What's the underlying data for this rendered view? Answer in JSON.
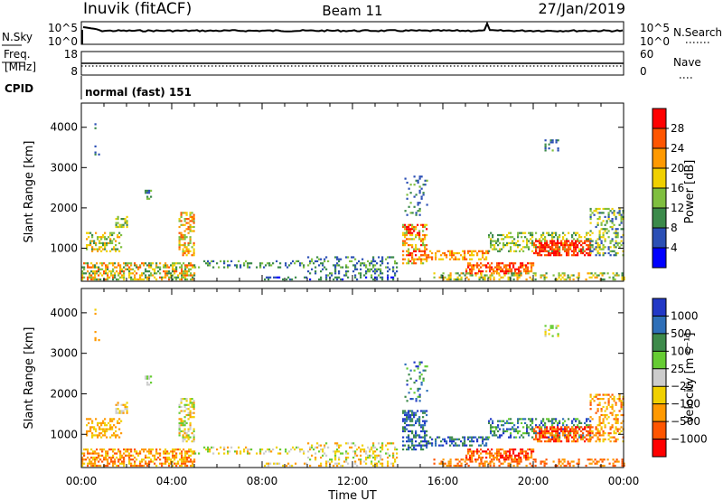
{
  "header": {
    "station": "Inuvik (fitACF)",
    "beam": "Beam 11",
    "date": "27/Jan/2019"
  },
  "noise_panel": {
    "left_label": "N.Sky",
    "right_label": "N.Search",
    "left_ticks": [
      "10^5",
      "10^0"
    ],
    "right_ticks": [
      "10^5",
      "10^0"
    ]
  },
  "freq_panel": {
    "left_label_top": "Freq.",
    "left_label_bottom": "[MHz]",
    "right_label": "Nave",
    "left_ticks": [
      "18",
      "8"
    ],
    "right_ticks": [
      "60",
      "0"
    ]
  },
  "cpid": {
    "label": "CPID",
    "value": "normal (fast) 151"
  },
  "x_axis": {
    "label": "Time UT",
    "ticks": [
      "00:00",
      "04:00",
      "08:00",
      "12:00",
      "16:00",
      "20:00",
      "00:00"
    ]
  },
  "colors": {
    "power": [
      "#0000ff",
      "#2b4fb5",
      "#3b8a4a",
      "#7fbf3f",
      "#f0d000",
      "#ff9900",
      "#ff5500",
      "#ff0000"
    ],
    "velocity": [
      "#2238c6",
      "#2e6fb8",
      "#3d8a4a",
      "#66cc33",
      "#cccccc",
      "#f0d000",
      "#ff9900",
      "#ff5500",
      "#ff0000"
    ]
  },
  "chart_data": [
    {
      "type": "heatmap",
      "name": "power",
      "xlabel": "",
      "ylabel": "Slant Range [km]",
      "xlim": [
        0,
        24
      ],
      "ylim": [
        180,
        4600
      ],
      "yticks": [
        "1000",
        "2000",
        "3000",
        "4000"
      ],
      "colorbar": {
        "label": "Power [dB]",
        "ticks": [
          "4",
          "8",
          "12",
          "16",
          "20",
          "24",
          "28"
        ],
        "range": [
          0,
          32
        ]
      }
    },
    {
      "type": "heatmap",
      "name": "velocity",
      "xlabel": "Time UT",
      "ylabel": "Slant Range [km]",
      "xlim": [
        0,
        24
      ],
      "ylim": [
        180,
        4600
      ],
      "yticks": [
        "1000",
        "2000",
        "3000",
        "4000"
      ],
      "colorbar": {
        "label": "Velocity [m s⁻¹]",
        "ticks": [
          "1000",
          "500",
          "100",
          "25",
          "−25",
          "−100",
          "−500",
          "−1000"
        ]
      }
    }
  ]
}
